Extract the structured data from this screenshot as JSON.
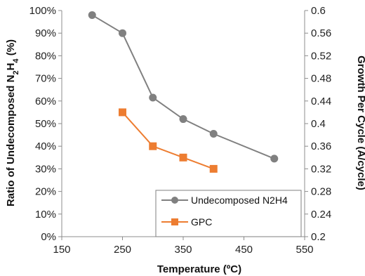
{
  "chart_data": {
    "type": "line",
    "xlabel": "Temperature (ºC)",
    "ylabel_left_parts": [
      "Ratio of Undecomposed N",
      "2",
      "H",
      "4",
      " (%)"
    ],
    "ylabel_right": "Growth Per Cycle (Å/cycle)",
    "xlim": [
      150,
      550
    ],
    "x_ticks": [
      150,
      250,
      350,
      450,
      550
    ],
    "ylim_left": [
      0,
      100
    ],
    "y_ticks_left": [
      "0%",
      "10%",
      "20%",
      "30%",
      "40%",
      "50%",
      "60%",
      "70%",
      "80%",
      "90%",
      "100%"
    ],
    "ylim_right": [
      0.2,
      0.6
    ],
    "y_ticks_right": [
      "0.2",
      "0.24",
      "0.28",
      "0.32",
      "0.36",
      "0.4",
      "0.44",
      "0.48",
      "0.52",
      "0.56",
      "0.6"
    ],
    "grid": false,
    "legend_position": "bottom-right",
    "series": [
      {
        "name": "Undecomposed N2H4",
        "axis": "left",
        "color": "#808080",
        "marker": "circle",
        "x": [
          200,
          250,
          300,
          350,
          400,
          500
        ],
        "y": [
          98,
          90,
          61.5,
          52,
          45.5,
          34.5
        ]
      },
      {
        "name": "GPC",
        "axis": "right",
        "color": "#ED7D31",
        "marker": "square",
        "x": [
          250,
          300,
          350,
          400
        ],
        "y": [
          0.42,
          0.36,
          0.34,
          0.32
        ]
      }
    ]
  }
}
